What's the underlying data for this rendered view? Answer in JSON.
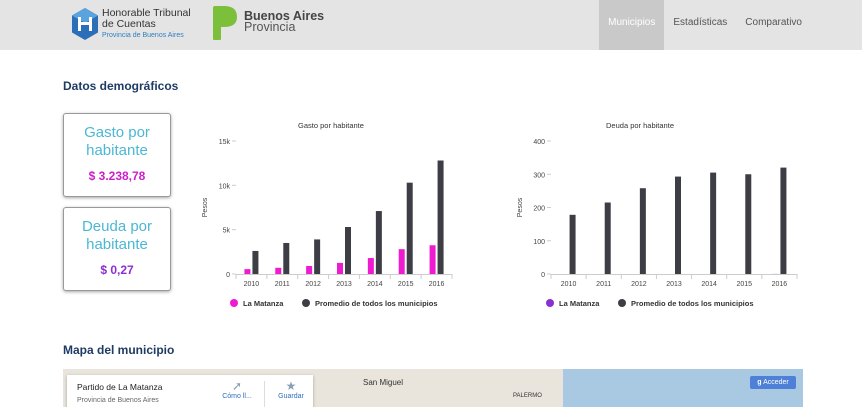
{
  "header": {
    "logo1_line1": "Honorable Tribunal",
    "logo1_line2": "de Cuentas",
    "logo1_sub": "Provincia de Buenos Aires",
    "logo2_line1": "Buenos Aires",
    "logo2_line2": "Provincia",
    "nav": [
      "Municipios",
      "Estadísticas",
      "Comparativo"
    ],
    "active_nav": "Municipios"
  },
  "demo": {
    "title": "Datos demográficos",
    "gasto": {
      "label_l1": "Gasto por",
      "label_l2": "habitante",
      "value": "$ 3.238,78",
      "value_color": "#cc1fc9"
    },
    "deuda": {
      "label_l1": "Deuda por",
      "label_l2": "habitante",
      "value": "$ 0,27",
      "value_color": "#8b2fd0"
    }
  },
  "chart_data": [
    {
      "type": "bar",
      "title": "Gasto por habitante",
      "ylabel": "Pesos",
      "categories": [
        "2010",
        "2011",
        "2012",
        "2013",
        "2014",
        "2015",
        "2016"
      ],
      "yticks": [
        "0",
        "5k",
        "10k",
        "15k"
      ],
      "ylim": [
        0,
        15000
      ],
      "series": [
        {
          "name": "La Matanza",
          "color": "#ee1bd1",
          "values": [
            550,
            700,
            900,
            1250,
            1800,
            2800,
            3240
          ]
        },
        {
          "name": "Promedio de todos los municipios",
          "color": "#3d3d45",
          "values": [
            2600,
            3500,
            3900,
            5300,
            7100,
            10300,
            12800
          ]
        }
      ]
    },
    {
      "type": "bar",
      "title": "Deuda por habitante",
      "ylabel": "Pesos",
      "categories": [
        "2010",
        "2011",
        "2012",
        "2013",
        "2014",
        "2015",
        "2016"
      ],
      "yticks": [
        "0",
        "100",
        "200",
        "300",
        "400"
      ],
      "ylim": [
        0,
        400
      ],
      "series": [
        {
          "name": "La Matanza",
          "color": "#8b2fd0",
          "values": [
            0,
            0,
            0,
            0,
            0,
            0,
            0.27
          ]
        },
        {
          "name": "Promedio de todos los municipios",
          "color": "#3d3d45",
          "values": [
            178,
            215,
            258,
            293,
            305,
            300,
            320
          ]
        }
      ]
    }
  ],
  "map": {
    "title": "Mapa del municipio",
    "place_name": "Partido de La Matanza",
    "place_prov": "Provincia de Buenos Aires",
    "directions_label": "Cómo ll...",
    "save_label": "Guardar",
    "city_label": "San Miguel",
    "palermo_label": "PALERMO",
    "signin_label": "Acceder",
    "directions_icon": "directions-icon",
    "save_icon": "star-icon"
  }
}
